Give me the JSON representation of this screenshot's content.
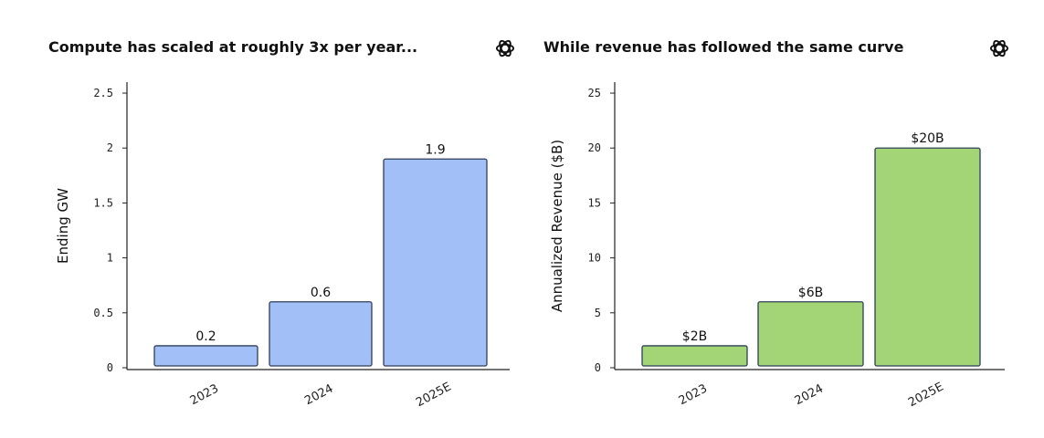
{
  "colors": {
    "compute_bar": "#a3bff7",
    "revenue_bar": "#a3d576",
    "bar_stroke": "#2e3f57",
    "axis": "#222222"
  },
  "panels": [
    {
      "title": "Compute has scaled at roughly 3x per year...",
      "logo_icon": "openai-logo-icon"
    },
    {
      "title": "While revenue has followed the same curve",
      "logo_icon": "openai-logo-icon"
    }
  ],
  "chart_data": [
    {
      "type": "bar",
      "title": "Compute has scaled at roughly 3x per year...",
      "xlabel": "",
      "ylabel": "Ending GW",
      "categories": [
        "2023",
        "2024",
        "2025E"
      ],
      "values": [
        0.2,
        0.6,
        1.9
      ],
      "data_labels": [
        "0.2",
        "0.6",
        "1.9"
      ],
      "ylim": [
        0,
        2.6
      ],
      "yticks": [
        0,
        0.5,
        1,
        1.5,
        2,
        2.5
      ],
      "ytick_labels": [
        "0",
        "0.5",
        "1",
        "1.5",
        "2",
        "2.5"
      ],
      "grid": false,
      "color": "#a3bff7"
    },
    {
      "type": "bar",
      "title": "While revenue has followed the same curve",
      "xlabel": "",
      "ylabel": "Annualized Revenue ($B)",
      "categories": [
        "2023",
        "2024",
        "2025E"
      ],
      "values": [
        2,
        6,
        20
      ],
      "data_labels": [
        "$2B",
        "$6B",
        "$20B"
      ],
      "ylim": [
        0,
        26
      ],
      "yticks": [
        0,
        5,
        10,
        15,
        20,
        25
      ],
      "ytick_labels": [
        "0",
        "5",
        "10",
        "15",
        "20",
        "25"
      ],
      "grid": false,
      "color": "#a3d576"
    }
  ]
}
